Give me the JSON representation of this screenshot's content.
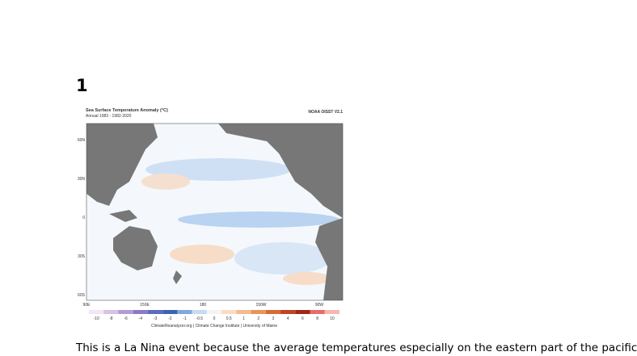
{
  "heading": "1",
  "figure": {
    "title": "Sea Surface Temperature Anomaly (°C)",
    "subtitle": "Annual 1983 - 1982-2020",
    "source_tag": "NOAA OISST V2.1",
    "lat_labels": [
      "60N",
      "30N",
      "0",
      "30S",
      "60S"
    ],
    "lon_labels": [
      "90E",
      "150E",
      "180",
      "150W",
      "90W"
    ],
    "colorbar_labels": [
      "-10",
      "-8",
      "-6",
      "-4",
      "-3",
      "-2",
      "-1",
      "-0.5",
      "0",
      "0.5",
      "1",
      "2",
      "3",
      "4",
      "6",
      "8",
      "10"
    ],
    "credit": "ClimateReanalyzer.org | Climate Change Institute | University of Maine"
  },
  "caption": "This is a La Nina event because the average temperatures especially on the eastern part of the pacific"
}
